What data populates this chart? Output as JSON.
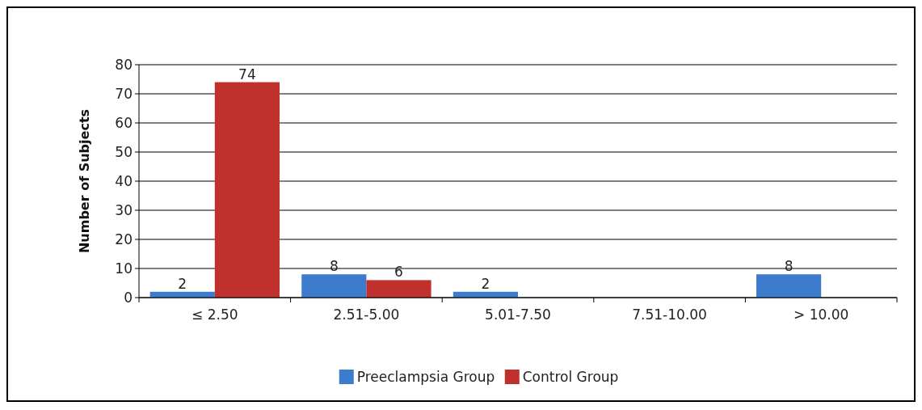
{
  "chart_data": {
    "type": "bar",
    "ylabel": "Number of Subjects",
    "categories": [
      "≤ 2.50",
      "2.51-5.00",
      "5.01-7.50",
      "7.51-10.00",
      "> 10.00"
    ],
    "series": [
      {
        "name": "Preeclampsia Group",
        "color": "#3d7ccc",
        "values": [
          2,
          8,
          2,
          0,
          8
        ],
        "value_labels": [
          "2",
          "8",
          "2",
          null,
          "8"
        ]
      },
      {
        "name": "Control Group",
        "color": "#c0312d",
        "values": [
          74,
          6,
          0,
          0,
          0
        ],
        "value_labels": [
          "74",
          "6",
          null,
          null,
          null
        ]
      }
    ],
    "ylim": [
      0,
      80
    ],
    "yticks": [
      0,
      10,
      20,
      30,
      40,
      50,
      60,
      70,
      80
    ],
    "grid": "y",
    "legend": "bottom"
  }
}
